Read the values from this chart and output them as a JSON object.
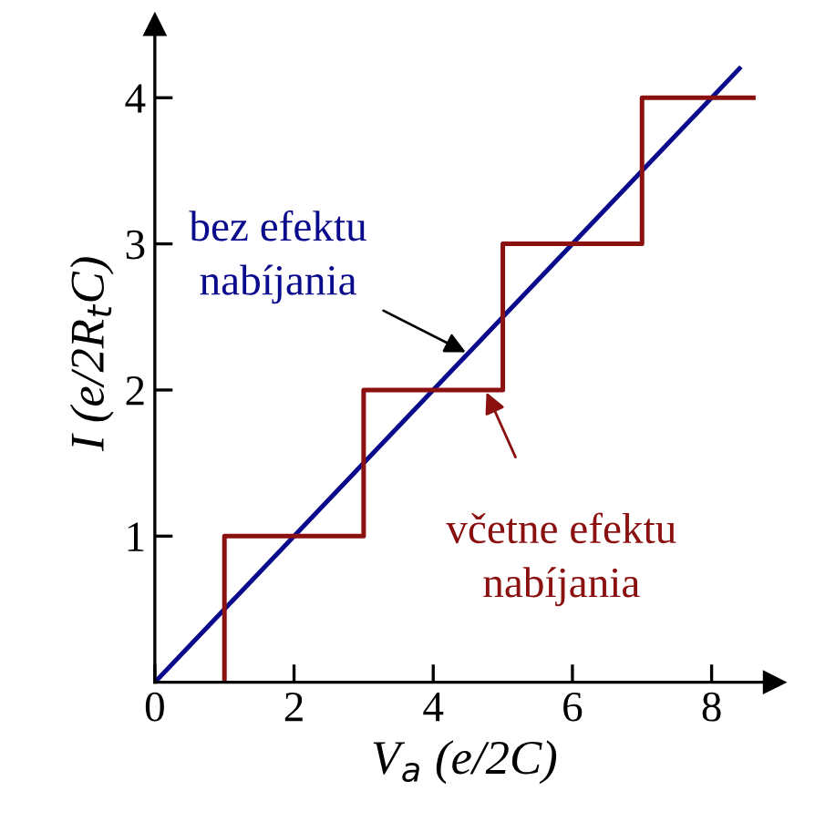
{
  "chart_data": {
    "type": "line",
    "xlabel": "V$_{a}$ (e/2C)",
    "ylabel": "I (e/2R$_{t}$C)",
    "xlim": [
      0,
      8.9
    ],
    "ylim": [
      0,
      4.5
    ],
    "xticks": [
      0,
      2,
      4,
      6,
      8
    ],
    "yticks": [
      1,
      2,
      3,
      4
    ],
    "grid": false,
    "legend": false,
    "marker": "none",
    "line_style": "solid",
    "series": [
      {
        "color": "#0a0a8c",
        "x": [
          0,
          8.4
        ],
        "values": [
          0,
          4.2
        ]
      },
      {
        "color": "#8b1010",
        "x": [
          1,
          1,
          3,
          3,
          5,
          5,
          7,
          7,
          8.6
        ],
        "values": [
          0,
          1,
          1,
          2,
          2,
          3,
          3,
          4,
          4
        ]
      }
    ],
    "annotations": [
      {
        "text": "bez efektu\nnabíjania",
        "x": 4.5,
        "y": 2.25
      },
      {
        "text": "včetne efektu\nnabíjania",
        "x": 4.75,
        "y": 2
      }
    ]
  }
}
